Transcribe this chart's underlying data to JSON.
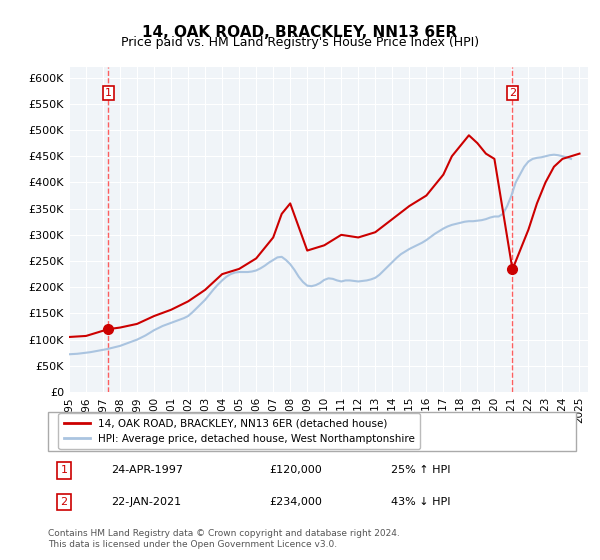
{
  "title": "14, OAK ROAD, BRACKLEY, NN13 6ER",
  "subtitle": "Price paid vs. HM Land Registry's House Price Index (HPI)",
  "ylabel_ticks": [
    "£0",
    "£50K",
    "£100K",
    "£150K",
    "£200K",
    "£250K",
    "£300K",
    "£350K",
    "£400K",
    "£450K",
    "£500K",
    "£550K",
    "£600K"
  ],
  "ytick_values": [
    0,
    50000,
    100000,
    150000,
    200000,
    250000,
    300000,
    350000,
    400000,
    450000,
    500000,
    550000,
    600000
  ],
  "ylim": [
    0,
    620000
  ],
  "xlim_start": 1995.0,
  "xlim_end": 2025.5,
  "xtick_years": [
    1995,
    1996,
    1997,
    1998,
    1999,
    2000,
    2001,
    2002,
    2003,
    2004,
    2005,
    2006,
    2007,
    2008,
    2009,
    2010,
    2011,
    2012,
    2013,
    2014,
    2015,
    2016,
    2017,
    2018,
    2019,
    2020,
    2021,
    2022,
    2023,
    2024,
    2025
  ],
  "hpi_color": "#aac4e0",
  "sale_color": "#cc0000",
  "dashed_color": "#ff4444",
  "marker_color": "#cc0000",
  "annotation_box_color": "#cc0000",
  "background_plot": "#f0f4f8",
  "grid_color": "#ffffff",
  "legend_label_sale": "14, OAK ROAD, BRACKLEY, NN13 6ER (detached house)",
  "legend_label_hpi": "HPI: Average price, detached house, West Northamptonshire",
  "sale1_x": 1997.31,
  "sale1_y": 120000,
  "sale1_label": "1",
  "sale2_x": 2021.06,
  "sale2_y": 234000,
  "sale2_label": "2",
  "annotation1_date": "24-APR-1997",
  "annotation1_price": "£120,000",
  "annotation1_hpi": "25% ↑ HPI",
  "annotation2_date": "22-JAN-2021",
  "annotation2_price": "£234,000",
  "annotation2_hpi": "43% ↓ HPI",
  "footer": "Contains HM Land Registry data © Crown copyright and database right 2024.\nThis data is licensed under the Open Government Licence v3.0.",
  "hpi_data_x": [
    1995.0,
    1995.25,
    1995.5,
    1995.75,
    1996.0,
    1996.25,
    1996.5,
    1996.75,
    1997.0,
    1997.25,
    1997.5,
    1997.75,
    1998.0,
    1998.25,
    1998.5,
    1998.75,
    1999.0,
    1999.25,
    1999.5,
    1999.75,
    2000.0,
    2000.25,
    2000.5,
    2000.75,
    2001.0,
    2001.25,
    2001.5,
    2001.75,
    2002.0,
    2002.25,
    2002.5,
    2002.75,
    2003.0,
    2003.25,
    2003.5,
    2003.75,
    2004.0,
    2004.25,
    2004.5,
    2004.75,
    2005.0,
    2005.25,
    2005.5,
    2005.75,
    2006.0,
    2006.25,
    2006.5,
    2006.75,
    2007.0,
    2007.25,
    2007.5,
    2007.75,
    2008.0,
    2008.25,
    2008.5,
    2008.75,
    2009.0,
    2009.25,
    2009.5,
    2009.75,
    2010.0,
    2010.25,
    2010.5,
    2010.75,
    2011.0,
    2011.25,
    2011.5,
    2011.75,
    2012.0,
    2012.25,
    2012.5,
    2012.75,
    2013.0,
    2013.25,
    2013.5,
    2013.75,
    2014.0,
    2014.25,
    2014.5,
    2014.75,
    2015.0,
    2015.25,
    2015.5,
    2015.75,
    2016.0,
    2016.25,
    2016.5,
    2016.75,
    2017.0,
    2017.25,
    2017.5,
    2017.75,
    2018.0,
    2018.25,
    2018.5,
    2018.75,
    2019.0,
    2019.25,
    2019.5,
    2019.75,
    2020.0,
    2020.25,
    2020.5,
    2020.75,
    2021.0,
    2021.25,
    2021.5,
    2021.75,
    2022.0,
    2022.25,
    2022.5,
    2022.75,
    2023.0,
    2023.25,
    2023.5,
    2023.75,
    2024.0,
    2024.25,
    2024.5
  ],
  "hpi_data_y": [
    72000,
    72500,
    73000,
    74000,
    75000,
    76000,
    77500,
    79000,
    80500,
    82000,
    84000,
    86000,
    88000,
    91000,
    94000,
    97000,
    100000,
    104000,
    108000,
    113000,
    118000,
    122000,
    126000,
    129000,
    132000,
    135000,
    138000,
    141000,
    145000,
    152000,
    160000,
    168000,
    176000,
    186000,
    196000,
    205000,
    213000,
    220000,
    225000,
    228000,
    229000,
    229000,
    229000,
    230000,
    232000,
    236000,
    241000,
    247000,
    252000,
    257000,
    258000,
    252000,
    244000,
    233000,
    220000,
    210000,
    203000,
    202000,
    204000,
    208000,
    214000,
    217000,
    216000,
    213000,
    211000,
    213000,
    213000,
    212000,
    211000,
    212000,
    213000,
    215000,
    218000,
    224000,
    232000,
    240000,
    248000,
    256000,
    263000,
    268000,
    273000,
    277000,
    281000,
    285000,
    290000,
    296000,
    302000,
    307000,
    312000,
    316000,
    319000,
    321000,
    323000,
    325000,
    326000,
    326000,
    327000,
    328000,
    330000,
    333000,
    335000,
    335000,
    340000,
    355000,
    375000,
    400000,
    415000,
    430000,
    440000,
    445000,
    447000,
    448000,
    450000,
    452000,
    453000,
    452000,
    450000,
    448000,
    445000
  ],
  "sale_data_x": [
    1995.0,
    1996.0,
    1997.31,
    1998.0,
    1999.0,
    2000.0,
    2001.0,
    2002.0,
    2003.0,
    2004.0,
    2005.0,
    2006.0,
    2007.0,
    2007.5,
    2008.0,
    2008.5,
    2009.0,
    2010.0,
    2011.0,
    2012.0,
    2013.0,
    2014.0,
    2015.0,
    2016.0,
    2017.0,
    2017.5,
    2018.0,
    2018.5,
    2019.0,
    2019.5,
    2020.0,
    2021.06,
    2022.0,
    2022.5,
    2023.0,
    2023.5,
    2024.0,
    2024.5,
    2025.0
  ],
  "sale_data_y": [
    105000,
    107000,
    120000,
    123000,
    130000,
    145000,
    157000,
    173000,
    195000,
    225000,
    235000,
    255000,
    295000,
    340000,
    360000,
    315000,
    270000,
    280000,
    300000,
    295000,
    305000,
    330000,
    355000,
    375000,
    415000,
    450000,
    470000,
    490000,
    475000,
    455000,
    445000,
    234000,
    310000,
    360000,
    400000,
    430000,
    445000,
    450000,
    455000
  ]
}
